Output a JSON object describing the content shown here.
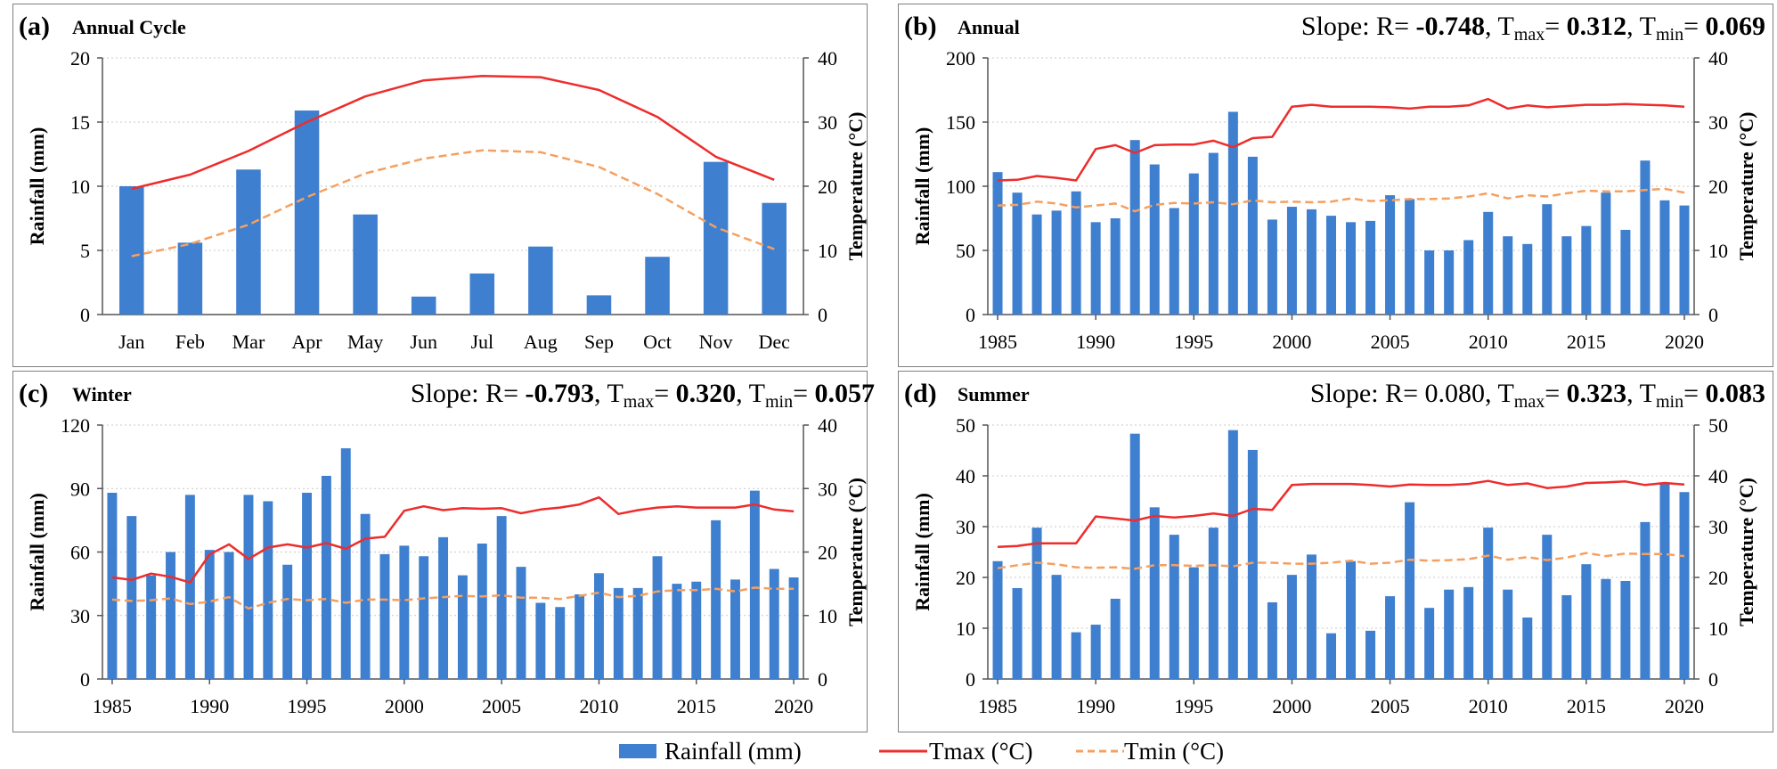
{
  "colors": {
    "bar": "#3f7fcf",
    "tmax": "#ee2c2c",
    "tmin": "#f5a060",
    "frame": "#7f7f7f",
    "grid": "#c8c8c8"
  },
  "legend": {
    "rainfall": "Rainfall (mm)",
    "tmax": "Tmax (°C)",
    "tmin": "Tmin (°C)"
  },
  "chart_data": [
    {
      "id": "a",
      "type": "bar",
      "panel_label": "(a)",
      "title": "Annual Cycle",
      "slope": null,
      "ylabel": "Rainfall (mm)",
      "y2label": "Temperature (°C)",
      "ylim": [
        0,
        20
      ],
      "yticks": [
        0,
        5,
        10,
        15,
        20
      ],
      "y2lim": [
        0,
        40
      ],
      "y2ticks": [
        0,
        10,
        20,
        30,
        40
      ],
      "categories": [
        "Jan",
        "Feb",
        "Mar",
        "Apr",
        "May",
        "Jun",
        "Jul",
        "Aug",
        "Sep",
        "Oct",
        "Nov",
        "Dec"
      ],
      "series": [
        {
          "name": "Rainfall (mm)",
          "kind": "bar",
          "values": [
            10.0,
            5.6,
            11.3,
            15.9,
            7.8,
            1.4,
            3.2,
            5.3,
            1.5,
            4.5,
            11.9,
            8.7
          ]
        },
        {
          "name": "Tmax (°C)",
          "kind": "line",
          "values": [
            19.6,
            21.8,
            25.5,
            30.0,
            34.0,
            36.5,
            37.2,
            37.0,
            35.0,
            30.8,
            24.6,
            21.0
          ]
        },
        {
          "name": "Tmin (°C)",
          "kind": "dashed",
          "values": [
            9.1,
            11.0,
            14.0,
            18.3,
            22.0,
            24.3,
            25.6,
            25.3,
            23.0,
            18.8,
            13.6,
            10.2
          ]
        }
      ]
    },
    {
      "id": "b",
      "type": "bar",
      "panel_label": "(b)",
      "title": "Annual",
      "slope": {
        "prefix": "Slope: R= ",
        "r": "-0.748",
        "r_bold": true,
        "tmax": "0.312",
        "tmax_bold": true,
        "tmin": "0.069",
        "tmin_bold": true
      },
      "ylabel": "Rainfall (mm)",
      "y2label": "Temperature (°C)",
      "ylim": [
        0,
        200
      ],
      "yticks": [
        0,
        50,
        100,
        150,
        200
      ],
      "y2lim": [
        0,
        40
      ],
      "y2ticks": [
        0,
        10,
        20,
        30,
        40
      ],
      "x": [
        1985,
        1986,
        1987,
        1988,
        1989,
        1990,
        1991,
        1992,
        1993,
        1994,
        1995,
        1996,
        1997,
        1998,
        1999,
        2000,
        2001,
        2002,
        2003,
        2004,
        2005,
        2006,
        2007,
        2008,
        2009,
        2010,
        2011,
        2012,
        2013,
        2014,
        2015,
        2016,
        2017,
        2018,
        2019,
        2020
      ],
      "xticks": [
        1985,
        1990,
        1995,
        2000,
        2005,
        2010,
        2015,
        2020
      ],
      "series": [
        {
          "name": "Rainfall (mm)",
          "kind": "bar",
          "values": [
            111,
            95,
            78,
            81,
            96,
            72,
            75,
            136,
            117,
            83,
            110,
            126,
            158,
            123,
            74,
            84,
            82,
            77,
            72,
            73,
            93,
            90,
            50,
            50,
            58,
            80,
            61,
            55,
            86,
            61,
            69,
            95,
            66,
            120,
            89,
            85
          ]
        },
        {
          "name": "Tmax (°C)",
          "kind": "line",
          "values": [
            20.9,
            21.0,
            21.6,
            21.3,
            20.9,
            25.8,
            26.4,
            25.2,
            26.4,
            26.5,
            26.5,
            27.1,
            26.1,
            27.5,
            27.7,
            32.4,
            32.7,
            32.4,
            32.4,
            32.4,
            32.3,
            32.1,
            32.4,
            32.4,
            32.6,
            33.6,
            32.1,
            32.6,
            32.3,
            32.5,
            32.7,
            32.7,
            32.8,
            32.7,
            32.6,
            32.4
          ]
        },
        {
          "name": "Tmin (°C)",
          "kind": "dashed",
          "values": [
            17.0,
            17.1,
            17.6,
            17.3,
            16.7,
            17.0,
            17.3,
            16.1,
            17.1,
            17.4,
            17.3,
            17.5,
            17.2,
            17.8,
            17.5,
            17.6,
            17.5,
            17.6,
            18.1,
            17.7,
            17.8,
            18.0,
            18.0,
            18.1,
            18.4,
            18.9,
            18.1,
            18.6,
            18.4,
            18.9,
            19.3,
            19.2,
            19.2,
            19.4,
            19.6,
            19.0
          ]
        }
      ]
    },
    {
      "id": "c",
      "type": "bar",
      "panel_label": "(c)",
      "title": "Winter",
      "slope": {
        "prefix": "Slope: R= ",
        "r": "-0.793",
        "r_bold": true,
        "tmax": "0.320",
        "tmax_bold": true,
        "tmin": "0.057",
        "tmin_bold": true
      },
      "ylabel": "Rainfall (mm)",
      "y2label": "Temperature (°C)",
      "ylim": [
        0,
        120
      ],
      "yticks": [
        0,
        30,
        60,
        90,
        120
      ],
      "y2lim": [
        0,
        40
      ],
      "y2ticks": [
        0,
        10,
        20,
        30,
        40
      ],
      "x": [
        1985,
        1986,
        1987,
        1988,
        1989,
        1990,
        1991,
        1992,
        1993,
        1994,
        1995,
        1996,
        1997,
        1998,
        1999,
        2000,
        2001,
        2002,
        2003,
        2004,
        2005,
        2006,
        2007,
        2008,
        2009,
        2010,
        2011,
        2012,
        2013,
        2014,
        2015,
        2016,
        2017,
        2018,
        2019,
        2020
      ],
      "xticks": [
        1985,
        1990,
        1995,
        2000,
        2005,
        2010,
        2015,
        2020
      ],
      "series": [
        {
          "name": "Rainfall (mm)",
          "kind": "bar",
          "values": [
            88,
            77,
            49,
            60,
            87,
            61,
            60,
            87,
            84,
            54,
            88,
            96,
            109,
            78,
            59,
            63,
            58,
            67,
            49,
            64,
            77,
            53,
            36,
            34,
            40,
            50,
            43,
            43,
            58,
            45,
            46,
            75,
            47,
            89,
            52,
            48
          ]
        },
        {
          "name": "Tmax (°C)",
          "kind": "line",
          "values": [
            16.0,
            15.6,
            16.6,
            16.1,
            15.2,
            19.6,
            21.2,
            18.9,
            20.7,
            21.2,
            20.7,
            21.4,
            20.5,
            22.1,
            22.4,
            26.5,
            27.2,
            26.6,
            26.9,
            26.8,
            26.9,
            26.1,
            26.7,
            27.0,
            27.5,
            28.6,
            26.0,
            26.6,
            27.0,
            27.2,
            27.0,
            27.0,
            27.0,
            27.5,
            26.7,
            26.4
          ]
        },
        {
          "name": "Tmin (°C)",
          "kind": "dashed",
          "values": [
            12.5,
            12.3,
            12.4,
            12.7,
            11.8,
            12.2,
            12.9,
            11.1,
            12.0,
            12.6,
            12.4,
            12.6,
            12.0,
            12.5,
            12.5,
            12.4,
            12.7,
            12.9,
            13.1,
            13.0,
            13.2,
            12.8,
            12.8,
            12.6,
            13.1,
            13.6,
            12.9,
            13.1,
            13.8,
            14.0,
            14.0,
            14.2,
            13.8,
            14.4,
            14.2,
            14.2
          ]
        }
      ]
    },
    {
      "id": "d",
      "type": "bar",
      "panel_label": "(d)",
      "title": "Summer",
      "slope": {
        "prefix": "Slope: R= ",
        "r": "0.080",
        "r_bold": false,
        "tmax": "0.323",
        "tmax_bold": true,
        "tmin": "0.083",
        "tmin_bold": true
      },
      "ylabel": "Rainfall (mm)",
      "y2label": "Temperature (°C)",
      "ylim": [
        0,
        50
      ],
      "yticks": [
        0,
        10,
        20,
        30,
        40,
        50
      ],
      "y2lim": [
        0,
        50
      ],
      "y2ticks": [
        0,
        10,
        20,
        30,
        40,
        50
      ],
      "x": [
        1985,
        1986,
        1987,
        1988,
        1989,
        1990,
        1991,
        1992,
        1993,
        1994,
        1995,
        1996,
        1997,
        1998,
        1999,
        2000,
        2001,
        2002,
        2003,
        2004,
        2005,
        2006,
        2007,
        2008,
        2009,
        2010,
        2011,
        2012,
        2013,
        2014,
        2015,
        2016,
        2017,
        2018,
        2019,
        2020
      ],
      "xticks": [
        1985,
        1990,
        1995,
        2000,
        2005,
        2010,
        2015,
        2020
      ],
      "series": [
        {
          "name": "Rainfall (mm)",
          "kind": "bar",
          "values": [
            23.2,
            17.9,
            29.8,
            20.5,
            9.2,
            10.7,
            15.8,
            48.3,
            33.8,
            28.4,
            22.0,
            29.8,
            49.0,
            45.1,
            15.1,
            20.5,
            24.5,
            9.0,
            23.2,
            9.5,
            16.3,
            34.8,
            14.0,
            17.6,
            18.1,
            29.8,
            17.6,
            12.1,
            28.4,
            16.5,
            22.6,
            19.7,
            19.3,
            30.9,
            38.5,
            36.8
          ]
        },
        {
          "name": "Tmax (°C)",
          "kind": "line",
          "values": [
            26.0,
            26.2,
            26.7,
            26.7,
            26.7,
            32.0,
            31.6,
            31.2,
            32.1,
            31.8,
            32.1,
            32.6,
            32.1,
            33.5,
            33.3,
            38.2,
            38.4,
            38.4,
            38.4,
            38.2,
            37.9,
            38.3,
            38.2,
            38.2,
            38.4,
            39.0,
            38.2,
            38.5,
            37.6,
            37.9,
            38.6,
            38.7,
            38.9,
            38.2,
            38.6,
            38.3
          ]
        },
        {
          "name": "Tmin (°C)",
          "kind": "dashed",
          "values": [
            21.8,
            22.4,
            22.9,
            22.6,
            22.0,
            21.9,
            22.0,
            21.7,
            22.4,
            22.4,
            22.3,
            22.4,
            22.2,
            22.9,
            22.9,
            22.7,
            22.7,
            22.9,
            23.3,
            22.7,
            22.9,
            23.5,
            23.3,
            23.4,
            23.6,
            24.3,
            23.5,
            24.0,
            23.4,
            23.9,
            24.8,
            24.2,
            24.7,
            24.6,
            24.6,
            24.2
          ]
        }
      ]
    }
  ]
}
